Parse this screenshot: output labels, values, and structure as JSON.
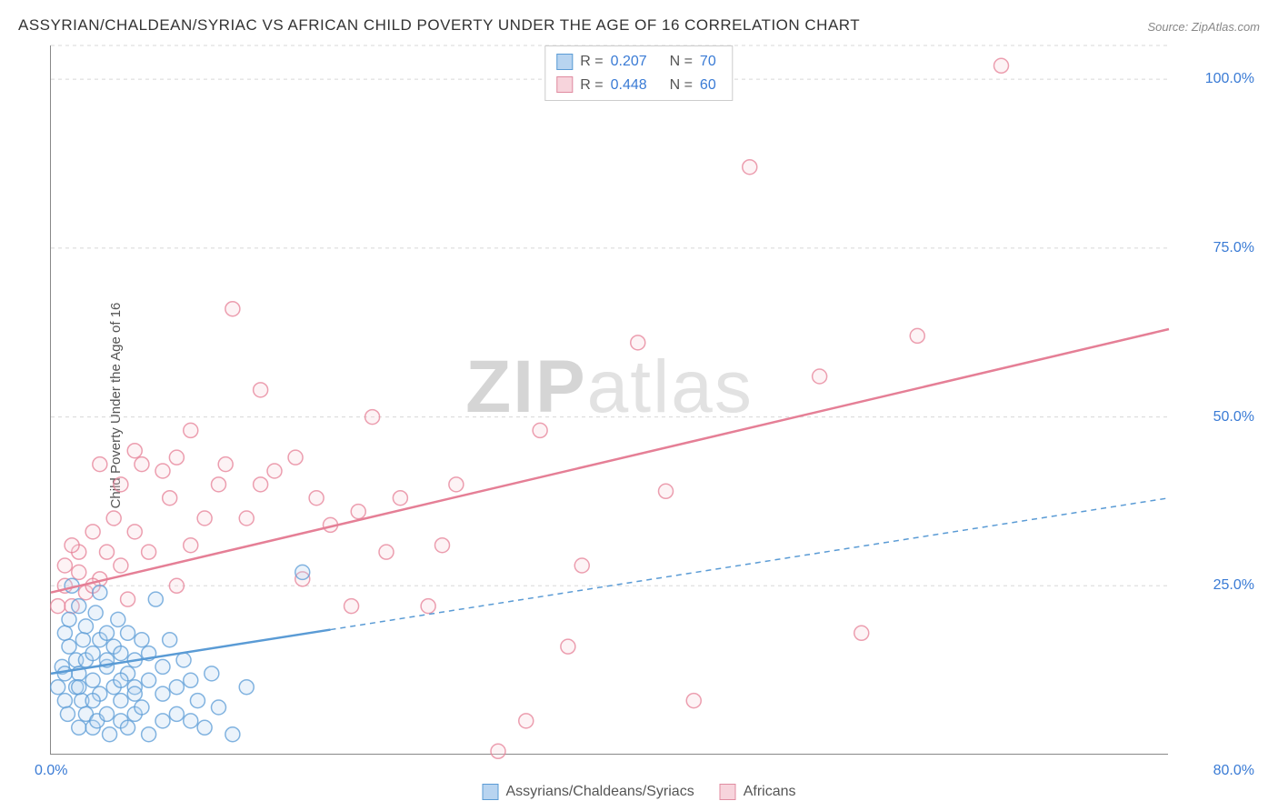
{
  "title": "ASSYRIAN/CHALDEAN/SYRIAC VS AFRICAN CHILD POVERTY UNDER THE AGE OF 16 CORRELATION CHART",
  "source": "Source: ZipAtlas.com",
  "ylabel": "Child Poverty Under the Age of 16",
  "watermark_a": "ZIP",
  "watermark_b": "atlas",
  "chart": {
    "type": "scatter",
    "xlim": [
      0,
      80
    ],
    "ylim": [
      0,
      105
    ],
    "xtick_min_label": "0.0%",
    "xtick_max_label": "80.0%",
    "yticks": [
      25,
      50,
      75,
      100
    ],
    "ytick_labels": [
      "25.0%",
      "50.0%",
      "75.0%",
      "100.0%"
    ],
    "grid_color": "#d8d8d8",
    "axis_color": "#888888",
    "tick_label_color": "#3a7bd5",
    "marker_radius": 8,
    "marker_stroke_width": 1.5,
    "marker_fill_opacity": 0.28,
    "line_width": 2.5,
    "series": [
      {
        "id": "assyrians",
        "label": "Assyrians/Chaldeans/Syriacs",
        "color": "#5a9bd5",
        "fill": "#b8d4f0",
        "r": "0.207",
        "n": "70",
        "trend_y_start": 12,
        "trend_y_end": 38,
        "trend_solid_to_x": 20,
        "points": [
          [
            0.5,
            10
          ],
          [
            0.8,
            13
          ],
          [
            1,
            8
          ],
          [
            1,
            18
          ],
          [
            1.2,
            6
          ],
          [
            1.3,
            16
          ],
          [
            1.3,
            20
          ],
          [
            1.5,
            25
          ],
          [
            1.8,
            10
          ],
          [
            1.8,
            14
          ],
          [
            2,
            4
          ],
          [
            2,
            12
          ],
          [
            2,
            22
          ],
          [
            2.2,
            8
          ],
          [
            2.3,
            17
          ],
          [
            2.5,
            6
          ],
          [
            2.5,
            14
          ],
          [
            2.5,
            19
          ],
          [
            3,
            4
          ],
          [
            3,
            11
          ],
          [
            3,
            15
          ],
          [
            3.2,
            21
          ],
          [
            3.3,
            5
          ],
          [
            3.5,
            9
          ],
          [
            3.5,
            17
          ],
          [
            3.5,
            24
          ],
          [
            4,
            6
          ],
          [
            4,
            13
          ],
          [
            4,
            18
          ],
          [
            4.2,
            3
          ],
          [
            4.5,
            10
          ],
          [
            4.5,
            16
          ],
          [
            4.8,
            20
          ],
          [
            5,
            5
          ],
          [
            5,
            8
          ],
          [
            5,
            15
          ],
          [
            5.5,
            4
          ],
          [
            5.5,
            12
          ],
          [
            5.5,
            18
          ],
          [
            6,
            6
          ],
          [
            6,
            10
          ],
          [
            6,
            14
          ],
          [
            6.5,
            7
          ],
          [
            6.5,
            17
          ],
          [
            7,
            3
          ],
          [
            7,
            11
          ],
          [
            7,
            15
          ],
          [
            7.5,
            23
          ],
          [
            8,
            5
          ],
          [
            8,
            9
          ],
          [
            8,
            13
          ],
          [
            8.5,
            17
          ],
          [
            9,
            6
          ],
          [
            9,
            10
          ],
          [
            9.5,
            14
          ],
          [
            10,
            5
          ],
          [
            10,
            11
          ],
          [
            10.5,
            8
          ],
          [
            11,
            4
          ],
          [
            11.5,
            12
          ],
          [
            12,
            7
          ],
          [
            13,
            3
          ],
          [
            14,
            10
          ],
          [
            18,
            27
          ],
          [
            1,
            12
          ],
          [
            2,
            10
          ],
          [
            3,
            8
          ],
          [
            4,
            14
          ],
          [
            5,
            11
          ],
          [
            6,
            9
          ]
        ]
      },
      {
        "id": "africans",
        "label": "Africans",
        "color": "#e57f96",
        "fill": "#f7d4dc",
        "r": "0.448",
        "n": "60",
        "trend_y_start": 24,
        "trend_y_end": 63,
        "trend_solid_to_x": 80,
        "points": [
          [
            0.5,
            22
          ],
          [
            1,
            25
          ],
          [
            1,
            28
          ],
          [
            1.5,
            22
          ],
          [
            2,
            27
          ],
          [
            2,
            30
          ],
          [
            2.5,
            24
          ],
          [
            3,
            33
          ],
          [
            3.5,
            26
          ],
          [
            3.5,
            43
          ],
          [
            4,
            30
          ],
          [
            4.5,
            35
          ],
          [
            5,
            28
          ],
          [
            5,
            40
          ],
          [
            5.5,
            23
          ],
          [
            6,
            33
          ],
          [
            6.5,
            43
          ],
          [
            7,
            30
          ],
          [
            8,
            42
          ],
          [
            8.5,
            38
          ],
          [
            9,
            44
          ],
          [
            10,
            31
          ],
          [
            10,
            48
          ],
          [
            11,
            35
          ],
          [
            12,
            40
          ],
          [
            12.5,
            43
          ],
          [
            13,
            66
          ],
          [
            14,
            35
          ],
          [
            15,
            40
          ],
          [
            15,
            54
          ],
          [
            16,
            42
          ],
          [
            17.5,
            44
          ],
          [
            18,
            26
          ],
          [
            19,
            38
          ],
          [
            20,
            34
          ],
          [
            21.5,
            22
          ],
          [
            22,
            36
          ],
          [
            23,
            50
          ],
          [
            24,
            30
          ],
          [
            25,
            38
          ],
          [
            27,
            22
          ],
          [
            28,
            31
          ],
          [
            29,
            40
          ],
          [
            32,
            0.5
          ],
          [
            34,
            5
          ],
          [
            35,
            48
          ],
          [
            37,
            16
          ],
          [
            38,
            28
          ],
          [
            42,
            61
          ],
          [
            46,
            8
          ],
          [
            50,
            87
          ],
          [
            55,
            56
          ],
          [
            58,
            18
          ],
          [
            62,
            62
          ],
          [
            68,
            102
          ],
          [
            44,
            39
          ],
          [
            9,
            25
          ],
          [
            6,
            45
          ],
          [
            3,
            25
          ],
          [
            1.5,
            31
          ]
        ]
      }
    ]
  },
  "legend_top": {
    "r_label": "R =",
    "n_label": "N ="
  }
}
